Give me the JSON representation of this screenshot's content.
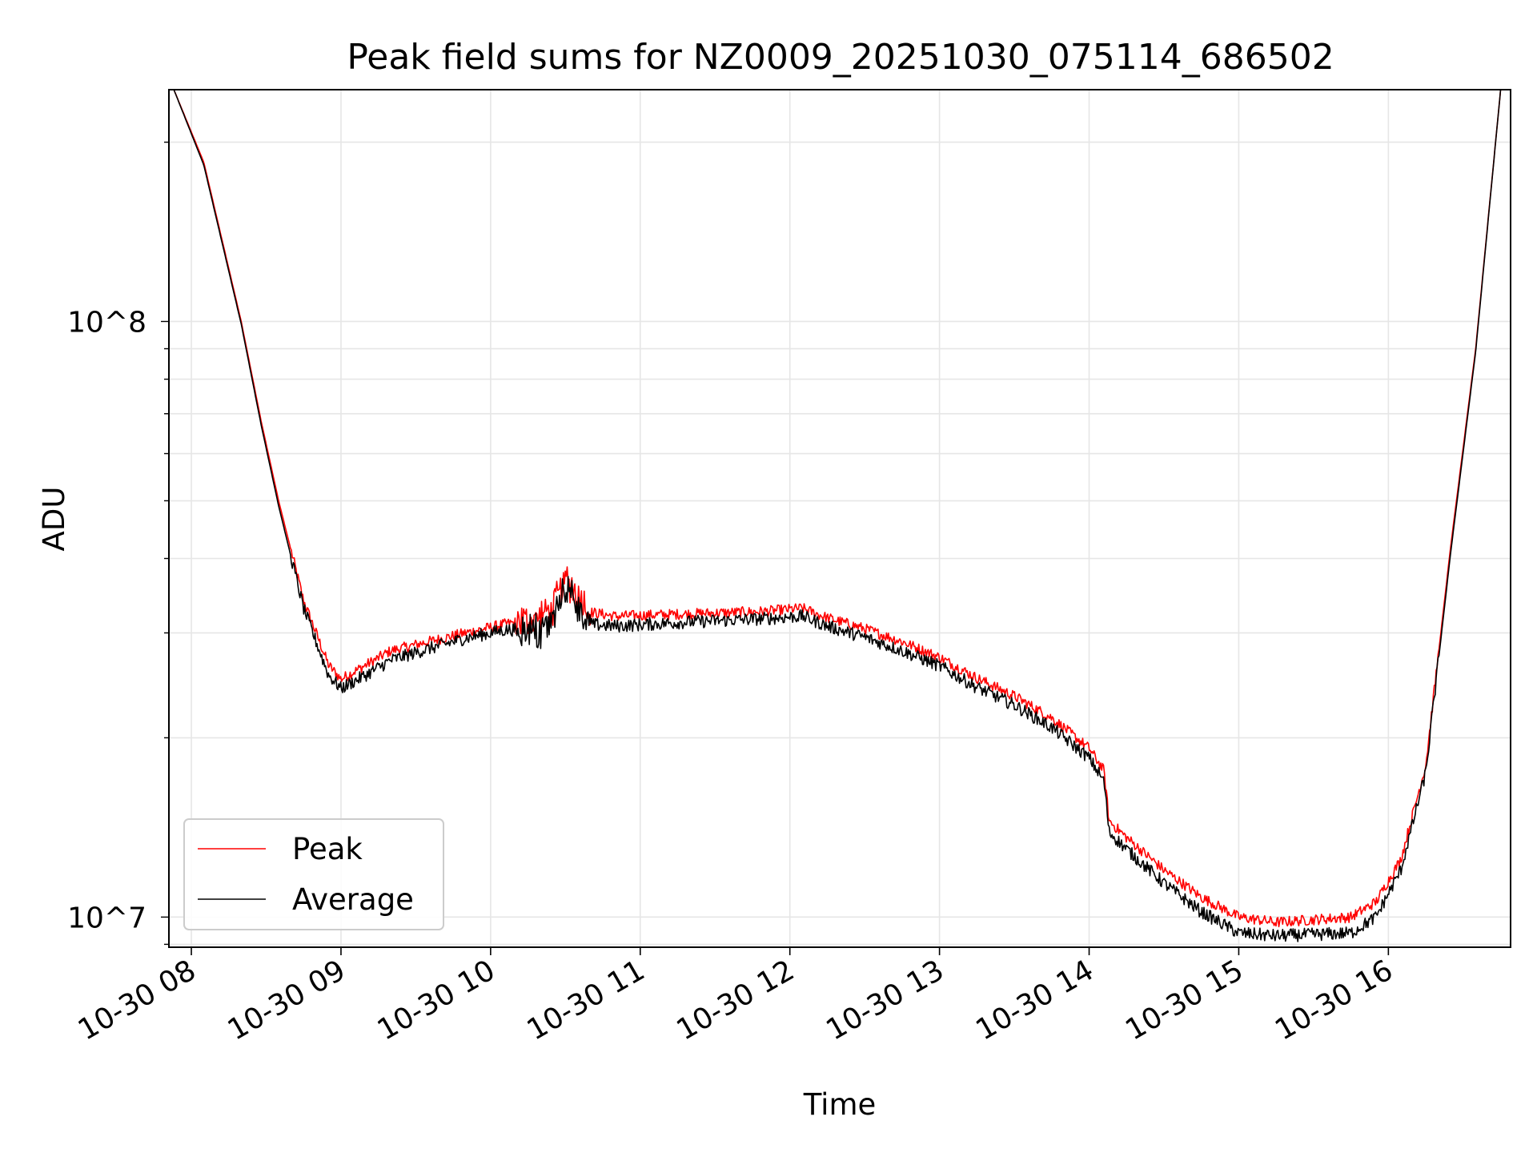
{
  "chart_data": {
    "type": "line",
    "title": "Peak field sums for NZ0009_20251030_075114_686502",
    "xlabel": "Time",
    "ylabel": "ADU",
    "y_scale": "log",
    "xlim": [
      "2025-10-30 07:51",
      "2025-10-30 16:49"
    ],
    "ylim": [
      8900000,
      245000000
    ],
    "grid": true,
    "legend_position": "lower-left",
    "x_ticks": [
      "10-30 08",
      "10-30 09",
      "10-30 10",
      "10-30 11",
      "10-30 12",
      "10-30 13",
      "10-30 14",
      "10-30 15",
      "10-30 16"
    ],
    "y_ticks": [
      "10^7",
      "10^8"
    ],
    "x": [
      "2025-10-30 07:53",
      "2025-10-30 08:05",
      "2025-10-30 08:20",
      "2025-10-30 08:28",
      "2025-10-30 08:35",
      "2025-10-30 08:45",
      "2025-10-30 08:55",
      "2025-10-30 09:00",
      "2025-10-30 09:10",
      "2025-10-30 09:20",
      "2025-10-30 09:35",
      "2025-10-30 09:50",
      "2025-10-30 10:05",
      "2025-10-30 10:15",
      "2025-10-30 10:20",
      "2025-10-30 10:25",
      "2025-10-30 10:30",
      "2025-10-30 10:35",
      "2025-10-30 10:40",
      "2025-10-30 10:50",
      "2025-10-30 11:20",
      "2025-10-30 11:50",
      "2025-10-30 12:05",
      "2025-10-30 12:15",
      "2025-10-30 12:30",
      "2025-10-30 12:45",
      "2025-10-30 13:00",
      "2025-10-30 13:15",
      "2025-10-30 13:30",
      "2025-10-30 13:45",
      "2025-10-30 14:00",
      "2025-10-30 14:06",
      "2025-10-30 14:08",
      "2025-10-30 14:15",
      "2025-10-30 14:30",
      "2025-10-30 14:45",
      "2025-10-30 15:00",
      "2025-10-30 15:15",
      "2025-10-30 15:30",
      "2025-10-30 15:45",
      "2025-10-30 15:55",
      "2025-10-30 16:05",
      "2025-10-30 16:15",
      "2025-10-30 16:25",
      "2025-10-30 16:35",
      "2025-10-30 16:45"
    ],
    "series": [
      {
        "name": "Peak",
        "color": "#ff0000",
        "values": [
          245000000,
          185000000,
          100000000,
          68000000,
          50000000,
          34000000,
          26500000,
          25100000,
          26500000,
          28000000,
          29000000,
          30000000,
          31000000,
          31500000,
          32000000,
          33000000,
          37000000,
          35000000,
          32500000,
          32000000,
          32300000,
          32600000,
          33000000,
          31800000,
          30500000,
          29000000,
          27300000,
          25200000,
          23500000,
          21600000,
          19200000,
          17600000,
          14500000,
          13600000,
          12000000,
          10800000,
          10000000,
          9800000,
          9900000,
          10000000,
          10600000,
          12500000,
          18000000,
          42000000,
          90000000,
          245000000
        ]
      },
      {
        "name": "Average",
        "color": "#000000",
        "values": [
          245000000,
          183000000,
          99000000,
          67000000,
          49000000,
          33000000,
          25500000,
          24200000,
          25500000,
          27000000,
          28200000,
          29400000,
          30300000,
          30500000,
          30000000,
          31500000,
          36000000,
          33500000,
          31000000,
          30800000,
          31300000,
          31700000,
          32000000,
          30800000,
          29500000,
          28000000,
          26400000,
          24300000,
          22700000,
          20800000,
          18500000,
          16900000,
          13900000,
          13000000,
          11400000,
          10200000,
          9400000,
          9300000,
          9350000,
          9400000,
          10000000,
          12000000,
          17500000,
          41000000,
          89000000,
          245000000
        ]
      }
    ]
  }
}
